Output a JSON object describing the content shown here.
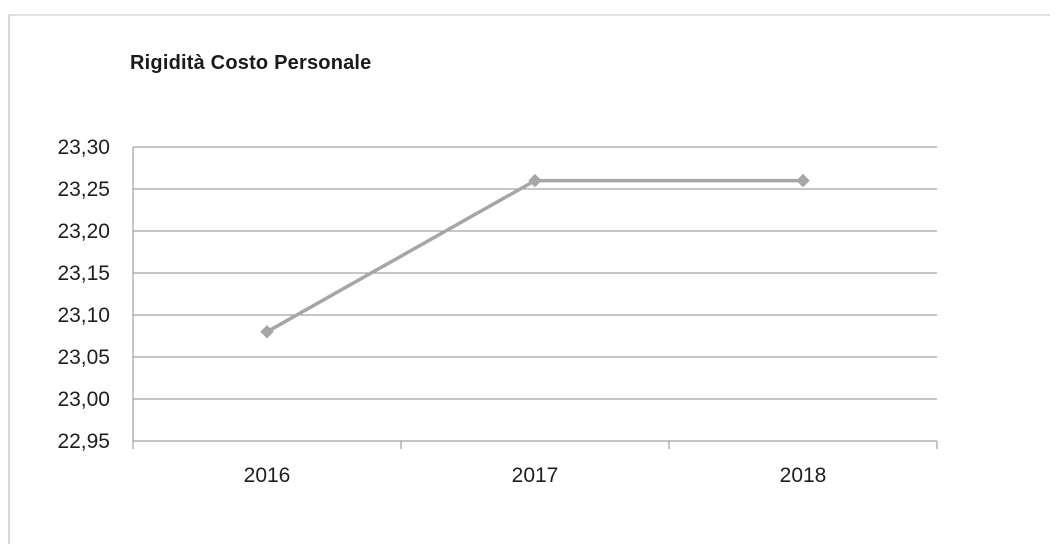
{
  "chart_data": {
    "type": "line",
    "title": "Rigidità Costo Personale",
    "categories": [
      "2016",
      "2017",
      "2018"
    ],
    "series": [
      {
        "values": [
          23.08,
          23.26,
          23.26
        ],
        "color": "#a6a6a6"
      }
    ],
    "ylim": [
      22.95,
      23.3
    ],
    "yticks": [
      "23,30",
      "23,25",
      "23,20",
      "23,15",
      "23,10",
      "23,05",
      "23,00",
      "22,95"
    ],
    "ytick_values": [
      23.3,
      23.25,
      23.2,
      23.15,
      23.1,
      23.05,
      23.0,
      22.95
    ],
    "xlabel": "",
    "ylabel": "",
    "grid": true,
    "marker": "diamond",
    "legend": "none"
  }
}
